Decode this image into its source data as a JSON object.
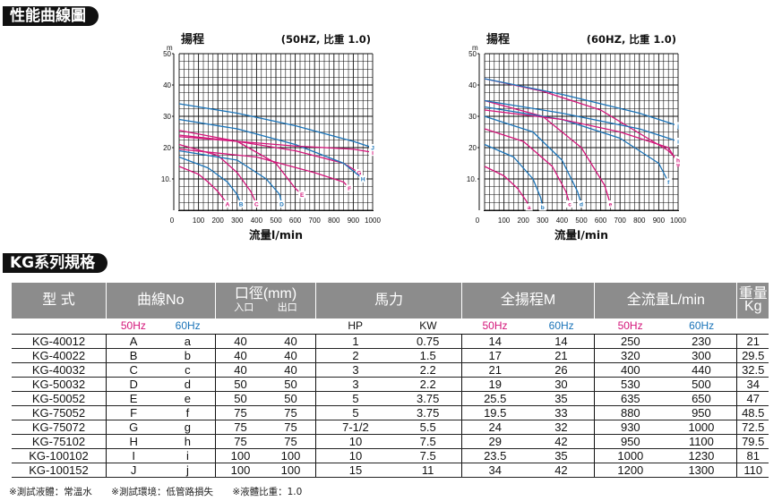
{
  "headings": {
    "curves": "性能曲線圖",
    "spec": "KG系列規格"
  },
  "chart_data": [
    {
      "type": "line",
      "id": "50hz",
      "title_left": "揚程",
      "title_right": "(50HZ, 比重 1.0)",
      "y_unit": "m",
      "xlabel": "流量l/min",
      "xlim": [
        0,
        1000
      ],
      "ylim": [
        0,
        50
      ],
      "xticks": [
        0,
        100,
        200,
        300,
        400,
        500,
        600,
        700,
        800,
        900,
        1000
      ],
      "yticks": [
        10,
        20,
        30,
        40,
        50
      ],
      "ytick_labels": [
        "10.",
        "20",
        "30",
        "40",
        "50"
      ],
      "grid": true,
      "colors": {
        "pink": "#d4157a",
        "blue": "#1a73b8"
      },
      "series": [
        {
          "name": "A",
          "color": "#d4157a",
          "x": [
            0,
            100,
            150,
            200,
            250
          ],
          "y": [
            14,
            11.5,
            9,
            6,
            2
          ]
        },
        {
          "name": "B",
          "color": "#1a73b8",
          "x": [
            0,
            150,
            250,
            300,
            320
          ],
          "y": [
            17,
            13.5,
            9,
            5,
            2
          ]
        },
        {
          "name": "C",
          "color": "#d4157a",
          "x": [
            0,
            200,
            300,
            370,
            400
          ],
          "y": [
            21,
            17.5,
            12,
            6,
            2
          ]
        },
        {
          "name": "D",
          "color": "#1a73b8",
          "x": [
            0,
            300,
            450,
            520,
            530
          ],
          "y": [
            19,
            16,
            10,
            5,
            2
          ]
        },
        {
          "name": "E",
          "color": "#d4157a",
          "x": [
            0,
            300,
            500,
            600,
            635
          ],
          "y": [
            25.5,
            22,
            15,
            7,
            5
          ]
        },
        {
          "name": "F",
          "color": "#d4157a",
          "x": [
            0,
            400,
            700,
            850,
            880
          ],
          "y": [
            19.5,
            17,
            12,
            9,
            7
          ]
        },
        {
          "name": "G",
          "color": "#d4157a",
          "x": [
            0,
            300,
            600,
            850,
            930
          ],
          "y": [
            24,
            22,
            19,
            15,
            12
          ]
        },
        {
          "name": "H",
          "color": "#1a73b8",
          "x": [
            0,
            300,
            600,
            850,
            950
          ],
          "y": [
            29,
            26,
            21,
            15,
            10
          ]
        },
        {
          "name": "I",
          "color": "#d4157a",
          "x": [
            0,
            300,
            600,
            900,
            1000
          ],
          "y": [
            23.5,
            22,
            20.5,
            19.5,
            18.5
          ]
        },
        {
          "name": "J",
          "color": "#1a73b8",
          "x": [
            0,
            300,
            600,
            900,
            1000
          ],
          "y": [
            34,
            31,
            27,
            22,
            20
          ]
        }
      ]
    },
    {
      "type": "line",
      "id": "60hz",
      "title_left": "揚程",
      "title_right": "(60HZ, 比重 1.0)",
      "y_unit": "m",
      "xlabel": "流量l/min",
      "xlim": [
        0,
        1000
      ],
      "ylim": [
        0,
        50
      ],
      "xticks": [
        0,
        100,
        200,
        300,
        400,
        500,
        600,
        700,
        800,
        900,
        1000
      ],
      "yticks": [
        10,
        20,
        30,
        40,
        50
      ],
      "ytick_labels": [
        "10.",
        "20",
        "30",
        "40",
        "50"
      ],
      "grid": true,
      "colors": {
        "pink": "#d4157a",
        "blue": "#1a73b8"
      },
      "series": [
        {
          "name": "a",
          "color": "#d4157a",
          "x": [
            0,
            100,
            170,
            215,
            230
          ],
          "y": [
            14,
            11,
            7,
            3,
            1
          ]
        },
        {
          "name": "b",
          "color": "#1a73b8",
          "x": [
            0,
            150,
            250,
            290,
            300
          ],
          "y": [
            21,
            17,
            10,
            4,
            1
          ]
        },
        {
          "name": "c",
          "color": "#d4157a",
          "x": [
            0,
            200,
            350,
            420,
            440
          ],
          "y": [
            26,
            22,
            14,
            6,
            2
          ]
        },
        {
          "name": "d",
          "color": "#1a73b8",
          "x": [
            0,
            250,
            400,
            480,
            500
          ],
          "y": [
            30,
            25,
            16,
            6,
            2
          ]
        },
        {
          "name": "e",
          "color": "#d4157a",
          "x": [
            0,
            300,
            500,
            620,
            650
          ],
          "y": [
            35,
            30,
            20,
            8,
            2
          ]
        },
        {
          "name": "f",
          "color": "#1a73b8",
          "x": [
            0,
            400,
            700,
            900,
            950
          ],
          "y": [
            33,
            29,
            23,
            15,
            9
          ]
        },
        {
          "name": "g",
          "color": "#d4157a",
          "x": [
            0,
            400,
            700,
            950,
            1000
          ],
          "y": [
            32,
            29,
            25,
            20,
            15
          ]
        },
        {
          "name": "h",
          "color": "#d4157a",
          "x": [
            0,
            300,
            600,
            950,
            1000
          ],
          "y": [
            42,
            38,
            32,
            19,
            16
          ]
        },
        {
          "name": "i",
          "color": "#1a73b8",
          "x": [
            0,
            400,
            800,
            1000
          ],
          "y": [
            35,
            31,
            26,
            22
          ]
        },
        {
          "name": "j",
          "color": "#1a73b8",
          "x": [
            0,
            400,
            800,
            1000
          ],
          "y": [
            42,
            37,
            31,
            27
          ]
        }
      ]
    }
  ],
  "table": {
    "headers": {
      "type": "型  式",
      "curve": "曲線No",
      "bore": "口徑(mm)",
      "bore_in": "入口",
      "bore_out": "出口",
      "power": "馬力",
      "head": "全揚程M",
      "flow": "全流量L/min",
      "weight": "重量",
      "weight_unit": "Kg"
    },
    "subheaders": {
      "c50": "50Hz",
      "c60": "60Hz",
      "hp": "HP",
      "kw": "KW",
      "h50": "50Hz",
      "h60": "60Hz",
      "f50": "50Hz",
      "f60": "60Hz"
    },
    "rows": [
      [
        "KG-40012",
        "A",
        "a",
        "40",
        "40",
        "1",
        "0.75",
        "14",
        "14",
        "250",
        "230",
        "21"
      ],
      [
        "KG-40022",
        "B",
        "b",
        "40",
        "40",
        "2",
        "1.5",
        "17",
        "21",
        "320",
        "300",
        "29.5"
      ],
      [
        "KG-40032",
        "C",
        "c",
        "40",
        "40",
        "3",
        "2.2",
        "21",
        "26",
        "400",
        "440",
        "32.5"
      ],
      [
        "KG-50032",
        "D",
        "d",
        "50",
        "50",
        "3",
        "2.2",
        "19",
        "30",
        "530",
        "500",
        "34"
      ],
      [
        "KG-50052",
        "E",
        "e",
        "50",
        "50",
        "5",
        "3.75",
        "25.5",
        "35",
        "635",
        "650",
        "47"
      ],
      [
        "KG-75052",
        "F",
        "f",
        "75",
        "75",
        "5",
        "3.75",
        "19.5",
        "33",
        "880",
        "950",
        "48.5"
      ],
      [
        "KG-75072",
        "G",
        "g",
        "75",
        "75",
        "7-1/2",
        "5.5",
        "24",
        "32",
        "930",
        "1000",
        "72.5"
      ],
      [
        "KG-75102",
        "H",
        "h",
        "75",
        "75",
        "10",
        "7.5",
        "29",
        "42",
        "950",
        "1100",
        "79.5"
      ],
      [
        "KG-100102",
        "I",
        "i",
        "100",
        "100",
        "10",
        "7.5",
        "23.5",
        "35",
        "1000",
        "1230",
        "81"
      ],
      [
        "KG-100152",
        "J",
        "j",
        "100",
        "100",
        "15",
        "11",
        "34",
        "42",
        "1200",
        "1300",
        "110"
      ]
    ]
  },
  "notes": [
    "※測試液體：常溫水",
    "※測試環境：低管路損失",
    "※液體比重：1.0"
  ]
}
